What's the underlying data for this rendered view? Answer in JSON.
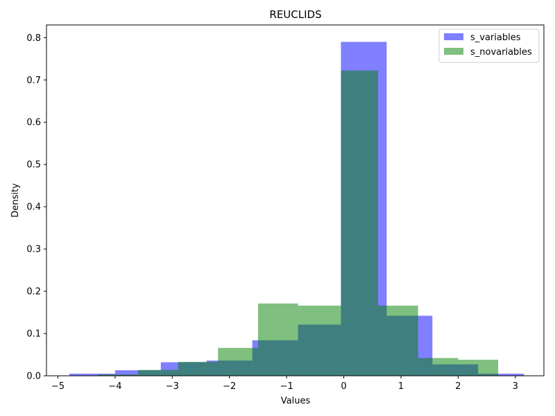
{
  "chart_data": {
    "type": "histogram",
    "title": "REUCLIDS",
    "xlabel": "Values",
    "ylabel": "Density",
    "xlim": [
      -5.2,
      3.5
    ],
    "ylim": [
      0,
      0.83
    ],
    "xticks": [
      "−5",
      "−4",
      "−3",
      "−2",
      "−1",
      "0",
      "1",
      "2",
      "3"
    ],
    "xtick_values": [
      -5,
      -4,
      -3,
      -2,
      -1,
      0,
      1,
      2,
      3
    ],
    "yticks": [
      "0.0",
      "0.1",
      "0.2",
      "0.3",
      "0.4",
      "0.5",
      "0.6",
      "0.7",
      "0.8"
    ],
    "ytick_values": [
      0,
      0.1,
      0.2,
      0.3,
      0.4,
      0.5,
      0.6,
      0.7,
      0.8
    ],
    "legend_position": "top-right",
    "series": [
      {
        "name": "s_variables",
        "color": "#0000ff",
        "opacity": 0.5,
        "bins": [
          {
            "x0": -4.8,
            "x1": -4.0,
            "value": 0.005
          },
          {
            "x0": -4.0,
            "x1": -3.2,
            "value": 0.013
          },
          {
            "x0": -3.2,
            "x1": -2.4,
            "value": 0.032
          },
          {
            "x0": -2.4,
            "x1": -1.6,
            "value": 0.036
          },
          {
            "x0": -1.6,
            "x1": -0.8,
            "value": 0.084
          },
          {
            "x0": -0.8,
            "x1": -0.05,
            "value": 0.121
          },
          {
            "x0": -0.05,
            "x1": 0.75,
            "value": 0.79
          },
          {
            "x0": 0.75,
            "x1": 1.55,
            "value": 0.142
          },
          {
            "x0": 1.55,
            "x1": 2.35,
            "value": 0.027
          },
          {
            "x0": 2.35,
            "x1": 3.15,
            "value": 0.005
          }
        ]
      },
      {
        "name": "s_novariables",
        "color": "#008000",
        "opacity": 0.5,
        "bins": [
          {
            "x0": -4.3,
            "x1": -3.6,
            "value": 0.003
          },
          {
            "x0": -3.6,
            "x1": -2.9,
            "value": 0.014
          },
          {
            "x0": -2.9,
            "x1": -2.2,
            "value": 0.033
          },
          {
            "x0": -2.2,
            "x1": -1.5,
            "value": 0.066
          },
          {
            "x0": -1.5,
            "x1": -0.8,
            "value": 0.171
          },
          {
            "x0": -0.8,
            "x1": -0.05,
            "value": 0.166
          },
          {
            "x0": -0.05,
            "x1": 0.6,
            "value": 0.722
          },
          {
            "x0": 0.6,
            "x1": 1.3,
            "value": 0.166
          },
          {
            "x0": 1.3,
            "x1": 2.0,
            "value": 0.042
          },
          {
            "x0": 2.0,
            "x1": 2.7,
            "value": 0.038
          }
        ]
      }
    ]
  }
}
